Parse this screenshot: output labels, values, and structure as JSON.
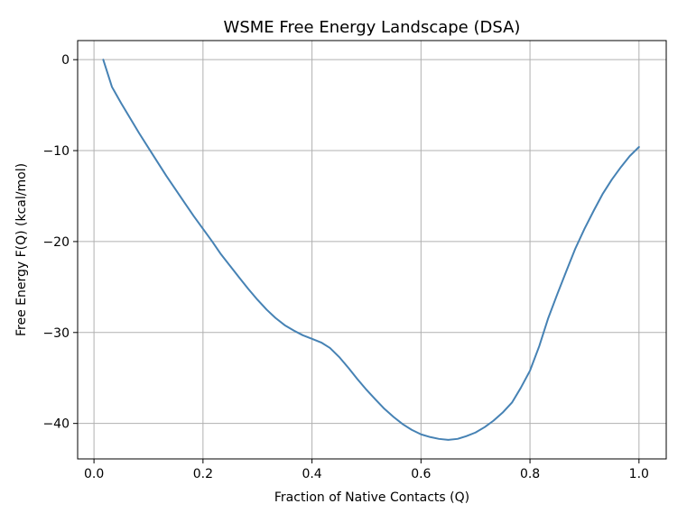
{
  "chart_data": {
    "type": "line",
    "title": "WSME Free Energy Landscape (DSA)",
    "xlabel": "Fraction of Native Contacts (Q)",
    "ylabel": "Free Energy F(Q) (kcal/mol)",
    "xlim": [
      -0.03,
      1.05
    ],
    "ylim": [
      -43.9,
      2.1
    ],
    "xticks": [
      0.0,
      0.2,
      0.4,
      0.6,
      0.8,
      1.0
    ],
    "xtick_labels": [
      "0.0",
      "0.2",
      "0.4",
      "0.6",
      "0.8",
      "1.0"
    ],
    "yticks": [
      0,
      -10,
      -20,
      -30,
      -40
    ],
    "ytick_labels": [
      "0",
      "−10",
      "−20",
      "−30",
      "−40"
    ],
    "grid": true,
    "series": [
      {
        "color": "#4682b4",
        "x": [
          0.017,
          0.033,
          0.05,
          0.067,
          0.083,
          0.1,
          0.117,
          0.133,
          0.15,
          0.167,
          0.183,
          0.2,
          0.217,
          0.233,
          0.25,
          0.267,
          0.283,
          0.3,
          0.317,
          0.333,
          0.35,
          0.367,
          0.383,
          0.4,
          0.417,
          0.433,
          0.45,
          0.467,
          0.483,
          0.5,
          0.517,
          0.533,
          0.55,
          0.567,
          0.583,
          0.6,
          0.617,
          0.633,
          0.65,
          0.667,
          0.683,
          0.7,
          0.717,
          0.733,
          0.75,
          0.767,
          0.783,
          0.8,
          0.817,
          0.833,
          0.85,
          0.867,
          0.883,
          0.9,
          0.917,
          0.933,
          0.95,
          0.967,
          0.983,
          1.0
        ],
        "y": [
          0.0,
          -3.0,
          -4.8,
          -6.5,
          -8.1,
          -9.7,
          -11.3,
          -12.8,
          -14.3,
          -15.8,
          -17.2,
          -18.6,
          -20.0,
          -21.4,
          -22.7,
          -24.0,
          -25.2,
          -26.4,
          -27.5,
          -28.4,
          -29.2,
          -29.8,
          -30.3,
          -30.7,
          -31.1,
          -31.7,
          -32.7,
          -33.9,
          -35.1,
          -36.3,
          -37.4,
          -38.4,
          -39.3,
          -40.1,
          -40.7,
          -41.2,
          -41.5,
          -41.7,
          -41.8,
          -41.7,
          -41.4,
          -41.0,
          -40.4,
          -39.7,
          -38.8,
          -37.7,
          -36.1,
          -34.2,
          -31.5,
          -28.5,
          -25.8,
          -23.2,
          -20.8,
          -18.6,
          -16.6,
          -14.8,
          -13.2,
          -11.8,
          -10.6,
          -9.6
        ]
      }
    ]
  }
}
